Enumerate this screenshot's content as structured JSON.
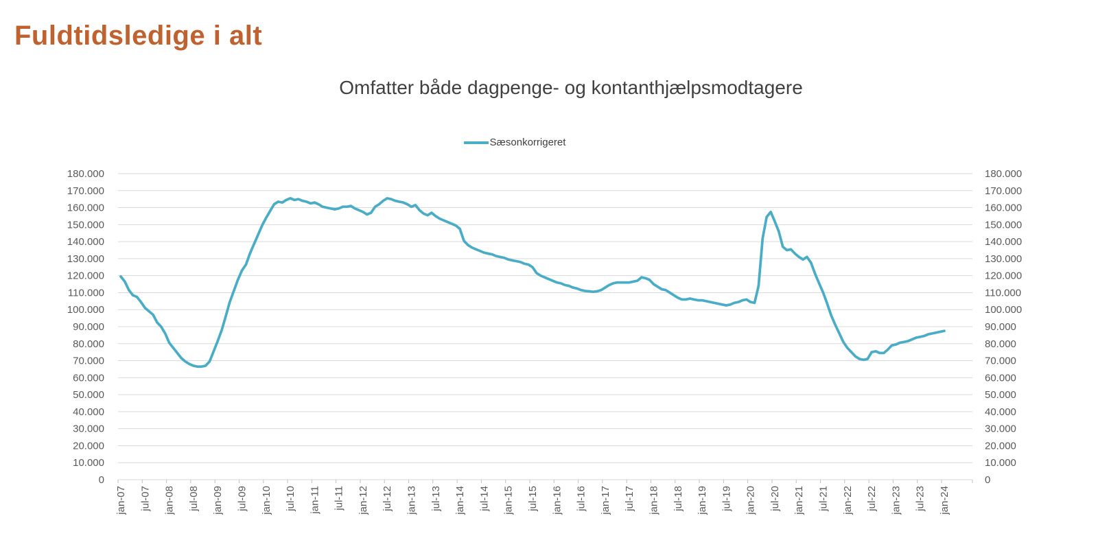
{
  "page": {
    "title": "Fuldtidsledige i alt",
    "title_color": "#C0622F",
    "background_color": "#FFFFFF"
  },
  "chart_data": {
    "type": "line",
    "title": "Omfatter både dagpenge- og kontanthjælpsmodtagere",
    "legend_position": "top-center",
    "grid": "horizontal-only",
    "dual_y_axis_labels": true,
    "x_start": "jan-07",
    "x_end": "jan-24",
    "frequency": "monthly",
    "x_tick_labels": [
      "jan-07",
      "jul-07",
      "jan-08",
      "jul-08",
      "jan-09",
      "jul-09",
      "jan-10",
      "jul-10",
      "jan-11",
      "jul-11",
      "jan-12",
      "jul-12",
      "jan-13",
      "jul-13",
      "jan-14",
      "jul-14",
      "jan-15",
      "jul-15",
      "jan-16",
      "jul-16",
      "jan-17",
      "jul-17",
      "jan-18",
      "jul-18",
      "jan-19",
      "jul-19",
      "jan-20",
      "jul-20",
      "jan-21",
      "jul-21",
      "jan-22",
      "jul-22",
      "jan-23",
      "jul-23",
      "jan-24"
    ],
    "ylim": [
      0,
      180000
    ],
    "ytick_step": 10000,
    "ytick_labels": [
      "0",
      "10.000",
      "20.000",
      "30.000",
      "40.000",
      "50.000",
      "60.000",
      "70.000",
      "80.000",
      "90.000",
      "100.000",
      "110.000",
      "120.000",
      "130.000",
      "140.000",
      "150.000",
      "160.000",
      "170.000",
      "180.000"
    ],
    "colors": {
      "line": "#4BACC6",
      "grid": "#D9D9D9",
      "axis_tick": "#BFBFBF",
      "axis_label": "#595959"
    },
    "series": [
      {
        "name": "Sæsonkorrigeret",
        "color": "#4BACC6",
        "values": [
          119500,
          116500,
          111500,
          108500,
          107500,
          104500,
          101000,
          99000,
          97000,
          92500,
          90000,
          86000,
          80500,
          77500,
          74500,
          71500,
          69500,
          68000,
          67000,
          66500,
          66500,
          67000,
          69500,
          75500,
          81500,
          88000,
          96000,
          104500,
          111000,
          117500,
          123000,
          126500,
          133000,
          138500,
          144000,
          149500,
          154000,
          158000,
          162000,
          163500,
          163000,
          164500,
          165500,
          164500,
          165000,
          164000,
          163500,
          162500,
          163000,
          162000,
          160500,
          160000,
          159500,
          159000,
          159500,
          160500,
          160500,
          161000,
          159500,
          158500,
          157500,
          156000,
          157000,
          160500,
          162000,
          164000,
          165500,
          165000,
          164000,
          163500,
          163000,
          162000,
          160500,
          161500,
          158500,
          156500,
          155500,
          157000,
          155000,
          153500,
          152500,
          151500,
          150500,
          149500,
          147500,
          140500,
          138000,
          136500,
          135500,
          134500,
          133500,
          133000,
          132500,
          131500,
          131000,
          130500,
          129500,
          129000,
          128500,
          128000,
          127000,
          126500,
          125000,
          121500,
          120000,
          119000,
          118000,
          117000,
          116000,
          115500,
          114500,
          114000,
          113000,
          112500,
          111500,
          111000,
          110800,
          110500,
          110800,
          111500,
          113000,
          114500,
          115500,
          116000,
          116000,
          116000,
          116000,
          116500,
          117000,
          119000,
          118500,
          117500,
          115000,
          113500,
          112000,
          111500,
          110000,
          108500,
          107000,
          106000,
          106000,
          106500,
          106000,
          105500,
          105500,
          105000,
          104500,
          104000,
          103500,
          103000,
          102500,
          103000,
          104000,
          104500,
          105500,
          106000,
          104500,
          104000,
          114000,
          142000,
          154500,
          157500,
          152000,
          146000,
          137000,
          135000,
          135500,
          133000,
          131000,
          129500,
          131000,
          127500,
          121000,
          115500,
          110000,
          103500,
          96500,
          91000,
          86000,
          81000,
          77500,
          75000,
          72500,
          71000,
          70500,
          71000,
          75000,
          75500,
          74500,
          74500,
          76500,
          79000,
          79500,
          80500,
          81000,
          81500,
          82500,
          83500,
          84000,
          84500,
          85500,
          86000,
          86500,
          87000,
          87500
        ]
      }
    ]
  }
}
